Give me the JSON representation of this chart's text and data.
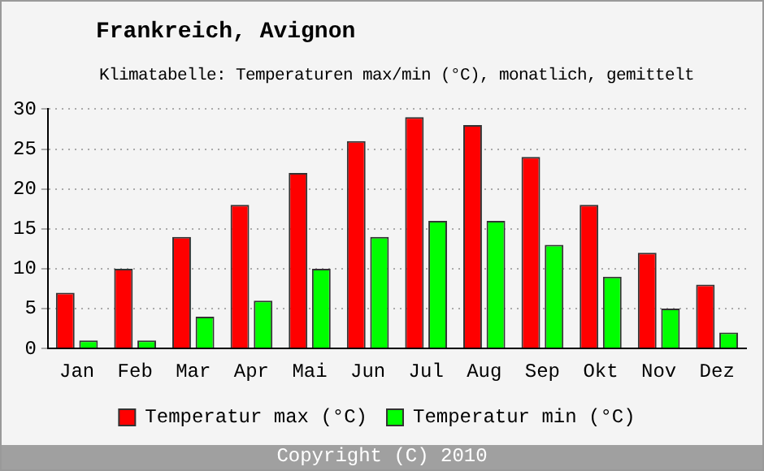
{
  "chart_data": {
    "type": "bar",
    "title": "Frankreich, Avignon",
    "subtitle": "Klimatabelle: Temperaturen max/min (°C), monatlich, gemittelt",
    "categories": [
      "Jan",
      "Feb",
      "Mar",
      "Apr",
      "Mai",
      "Jun",
      "Jul",
      "Aug",
      "Sep",
      "Okt",
      "Nov",
      "Dez"
    ],
    "series": [
      {
        "name": "Temperatur max (°C)",
        "color": "#ff0000",
        "values": [
          7,
          10,
          14,
          18,
          22,
          26,
          29,
          28,
          24,
          18,
          12,
          8
        ]
      },
      {
        "name": "Temperatur min (°C)",
        "color": "#00ff00",
        "values": [
          1,
          1,
          4,
          6,
          10,
          14,
          16,
          16,
          13,
          9,
          5,
          2
        ]
      }
    ],
    "ylim": [
      0,
      30
    ],
    "yticks": [
      0,
      5,
      10,
      15,
      20,
      25,
      30
    ],
    "grid": "y",
    "legend": "bottom",
    "annotations": [
      "Copyright (C) 2010"
    ]
  }
}
